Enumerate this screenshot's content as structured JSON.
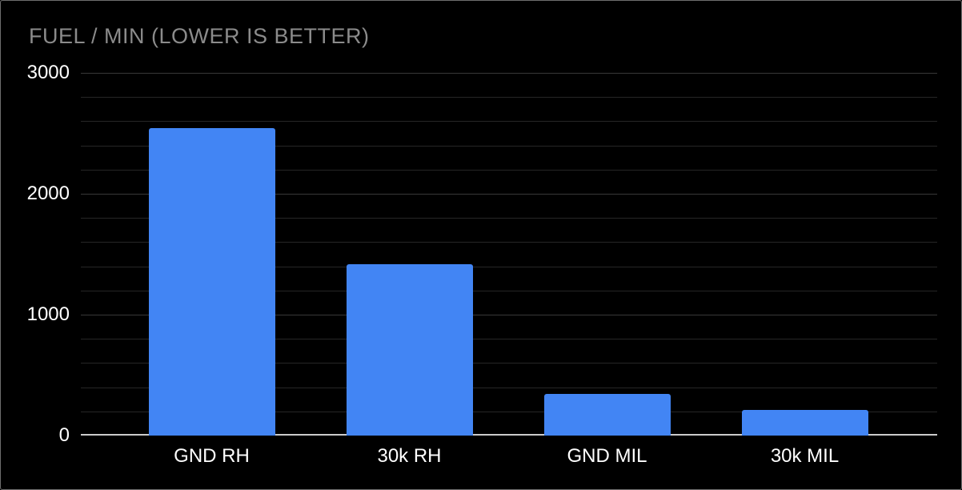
{
  "chart_data": {
    "type": "bar",
    "title": "FUEL / MIN (LOWER IS BETTER)",
    "categories": [
      "GND RH",
      "30k RH",
      "GND MIL",
      "30k MIL"
    ],
    "values": [
      2545,
      1415,
      345,
      215
    ],
    "xlabel": "",
    "ylabel": "",
    "ylim": [
      0,
      3000
    ],
    "y_major_ticks": [
      0,
      1000,
      2000,
      3000
    ],
    "y_minor_step": 200,
    "grid": true,
    "legend_position": "none",
    "colors": {
      "background": "#000000",
      "frame_border": "#6e6e6e",
      "bar": "#4285f4",
      "title": "#8b8b8b",
      "tick_label": "#ffffff",
      "gridline_minor": "#262626",
      "gridline_major": "#383838",
      "baseline": "#cbcbcb"
    }
  }
}
